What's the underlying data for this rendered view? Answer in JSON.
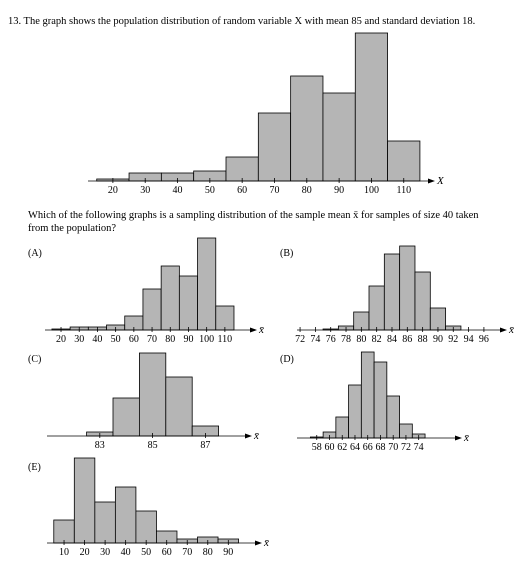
{
  "question": "13. The graph shows the population distribution of random variable X with mean 85 and standard deviation 18.",
  "prompt": [
    "Which of the following graphs is a sampling distribution of the sample mean x̄ for samples of size 40 taken",
    "from the population?"
  ],
  "chart_data": [
    {
      "type": "histogram",
      "x_label": "X",
      "bins": [
        15,
        25,
        35,
        45,
        55,
        65,
        75,
        85,
        95,
        105,
        115
      ],
      "values": [
        2,
        8,
        8,
        10,
        24,
        68,
        105,
        88,
        148,
        40
      ],
      "xlim": [
        12.3,
        117.5
      ],
      "xticks": [
        20,
        30,
        40,
        50,
        60,
        70,
        80,
        90,
        100,
        110
      ],
      "ylim": [
        0,
        150
      ],
      "color": "#b5b5b5"
    },
    {
      "type": "histogram",
      "label": "(A)",
      "x_label": "x̄",
      "bins": [
        15,
        25,
        35,
        45,
        55,
        65,
        75,
        85,
        95,
        105,
        115
      ],
      "values": [
        1,
        3,
        3,
        5,
        14,
        41,
        64,
        54,
        92,
        24
      ],
      "xlim": [
        11.2,
        123.8
      ],
      "xticks": [
        20,
        30,
        40,
        50,
        60,
        70,
        80,
        90,
        100,
        110
      ],
      "ylim": [
        0,
        100
      ],
      "color": "#b5b5b5"
    },
    {
      "type": "histogram",
      "label": "(B)",
      "x_label": "x̄",
      "bins": [
        75,
        77,
        79,
        81,
        83,
        85,
        87,
        89,
        91,
        93
      ],
      "values": [
        1,
        4,
        18,
        44,
        76,
        84,
        58,
        22,
        4
      ],
      "xlim": [
        71.6,
        98.1
      ],
      "xticks": [
        72,
        74,
        76,
        78,
        80,
        82,
        84,
        86,
        88,
        90,
        92,
        94,
        96
      ],
      "ylim": [
        0,
        100
      ],
      "color": "#b5b5b5"
    },
    {
      "type": "histogram",
      "label": "(C)",
      "x_label": "x̄",
      "bins": [
        82.5,
        83.5,
        84.5,
        85.5,
        86.5,
        87.5
      ],
      "values": [
        4,
        38,
        83,
        59,
        10
      ],
      "xlim": [
        81,
        88.5
      ],
      "xticks": [
        83,
        85,
        87
      ],
      "ylim": [
        0,
        100
      ],
      "color": "#b5b5b5"
    },
    {
      "type": "histogram",
      "label": "(D)",
      "x_label": "x̄",
      "bins": [
        57,
        59,
        61,
        63,
        65,
        67,
        69,
        71,
        73,
        75
      ],
      "values": [
        1,
        6,
        21,
        53,
        86,
        76,
        42,
        14,
        4
      ],
      "xlim": [
        54.9,
        79.7
      ],
      "xticks": [
        58,
        60,
        62,
        64,
        66,
        68,
        70,
        72,
        74
      ],
      "ylim": [
        0,
        100
      ],
      "color": "#b5b5b5"
    },
    {
      "type": "histogram",
      "label": "(E)",
      "x_label": "x̄",
      "bins": [
        5,
        15,
        25,
        35,
        45,
        55,
        65,
        75,
        85,
        95
      ],
      "values": [
        23,
        85,
        41,
        56,
        32,
        12,
        4,
        6,
        4
      ],
      "xlim": [
        1.7,
        103
      ],
      "xticks": [
        10,
        20,
        30,
        40,
        50,
        60,
        70,
        80,
        90
      ],
      "ylim": [
        0,
        100
      ],
      "color": "#b5b5b5"
    }
  ]
}
